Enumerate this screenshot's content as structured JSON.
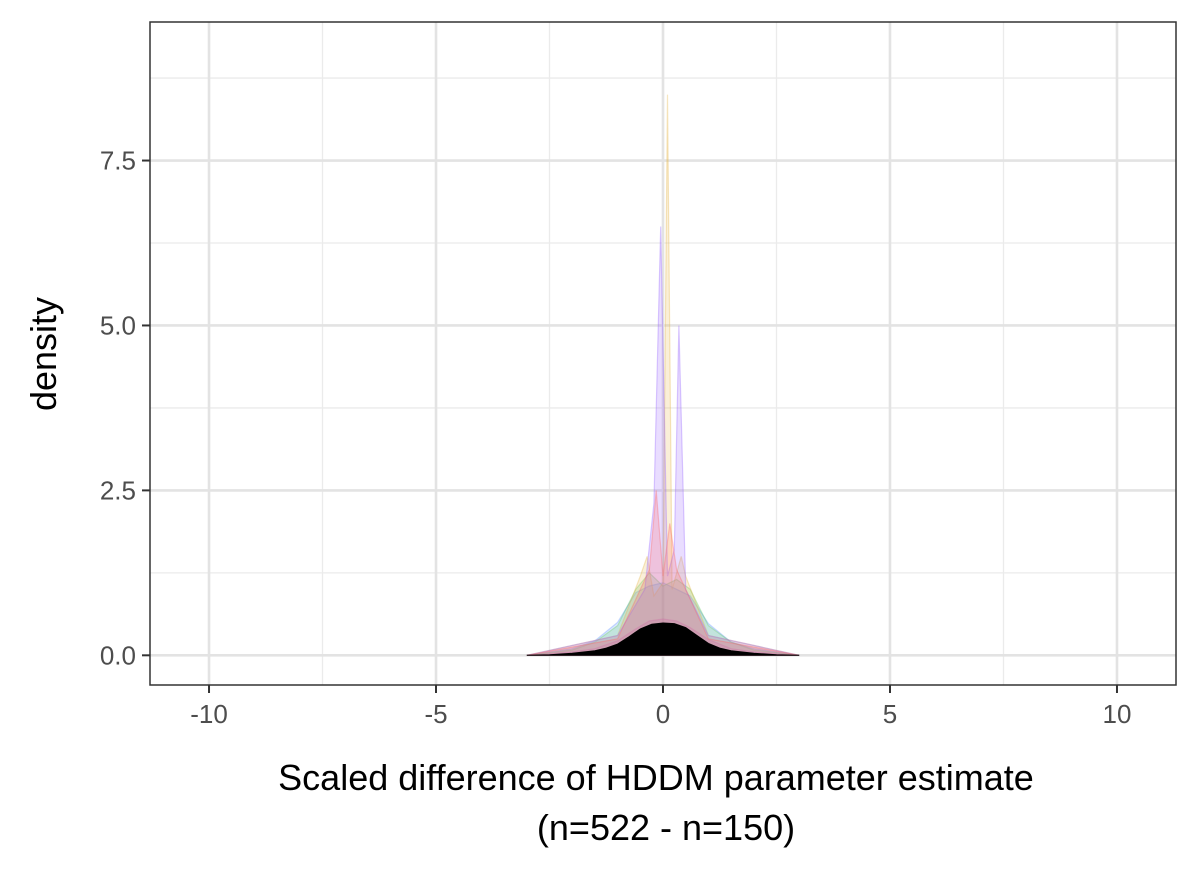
{
  "chart_data": {
    "type": "area",
    "xlabel": "Scaled difference of HDDM parameter estimate",
    "xlabel_line2": "(n=522 - n=150)",
    "ylabel": "density",
    "xlim": [
      -11.3,
      11.3
    ],
    "ylim": [
      -0.45,
      9.6
    ],
    "x_ticks": [
      -10,
      -5,
      0,
      5,
      10
    ],
    "x_tick_labels": [
      "-10",
      "-5",
      "0",
      "5",
      "10"
    ],
    "y_ticks": [
      0,
      2.5,
      5,
      7.5
    ],
    "y_tick_labels": [
      "0.0",
      "2.5",
      "5.0",
      "7.5"
    ],
    "grid": true,
    "legend": "none",
    "series": [
      {
        "color": "#000000",
        "x": [
          -3,
          -2.5,
          -2,
          -1.5,
          -1.25,
          -1,
          -0.75,
          -0.5,
          -0.25,
          0,
          0.25,
          0.5,
          0.75,
          1,
          1.25,
          1.5,
          2,
          2.5,
          3
        ],
        "y": [
          0.0,
          0.01,
          0.03,
          0.07,
          0.11,
          0.17,
          0.28,
          0.4,
          0.47,
          0.49,
          0.48,
          0.42,
          0.3,
          0.18,
          0.11,
          0.07,
          0.03,
          0.01,
          0.0
        ]
      },
      {
        "color": "#ff33cc",
        "x": [
          -3,
          -2,
          -1.5,
          -1,
          -0.6,
          -0.3,
          0,
          0.3,
          0.6,
          1,
          1.5,
          2,
          3
        ],
        "y": [
          0.0,
          0.05,
          0.1,
          0.22,
          0.4,
          0.52,
          0.55,
          0.52,
          0.42,
          0.24,
          0.1,
          0.05,
          0.0
        ]
      },
      {
        "color": "#6699ff",
        "x": [
          -3,
          -2,
          -1.5,
          -1,
          -0.6,
          -0.3,
          0,
          0.3,
          0.6,
          1,
          1.5,
          2,
          3
        ],
        "y": [
          0.0,
          0.1,
          0.22,
          0.5,
          0.95,
          1.05,
          1.1,
          1.0,
          0.9,
          0.48,
          0.2,
          0.1,
          0.0
        ]
      },
      {
        "color": "#66cc66",
        "x": [
          -3,
          -2,
          -1.5,
          -1,
          -0.6,
          -0.3,
          0,
          0.3,
          0.6,
          1,
          1.5,
          2,
          3
        ],
        "y": [
          0.0,
          0.08,
          0.2,
          0.45,
          1.0,
          1.25,
          1.05,
          1.15,
          1.0,
          0.45,
          0.2,
          0.08,
          0.0
        ]
      },
      {
        "color": "#e6b84d",
        "x": [
          -3,
          -1,
          -0.5,
          -0.35,
          -0.2,
          0,
          0.1,
          0.2,
          0.4,
          0.5,
          1,
          3
        ],
        "y": [
          0.0,
          0.3,
          1.2,
          1.5,
          0.9,
          1.1,
          8.5,
          1.0,
          1.5,
          1.2,
          0.3,
          0.0
        ]
      },
      {
        "color": "#9966ff",
        "x": [
          -3,
          -1,
          -0.4,
          -0.2,
          -0.05,
          0.1,
          0.25,
          0.35,
          0.5,
          1,
          3
        ],
        "y": [
          0.0,
          0.3,
          1.0,
          2.3,
          6.5,
          1.2,
          1.6,
          5.0,
          1.0,
          0.3,
          0.0
        ]
      },
      {
        "color": "#ff6666",
        "x": [
          -3,
          -1,
          -0.3,
          -0.15,
          0,
          0.15,
          0.3,
          1,
          3
        ],
        "y": [
          0.0,
          0.25,
          1.3,
          2.5,
          1.2,
          2.0,
          1.3,
          0.25,
          0.0
        ]
      }
    ]
  }
}
